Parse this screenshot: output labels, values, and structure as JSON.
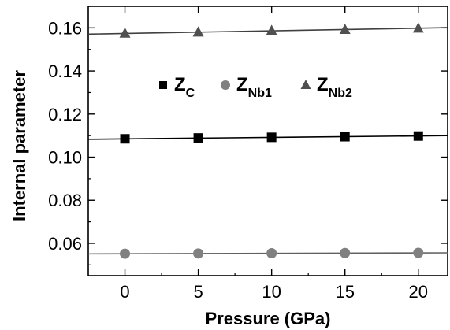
{
  "chart_data": {
    "type": "scatter",
    "xlabel": "Pressure (GPa)",
    "ylabel": "Internal parameter",
    "xlim": [
      -2.5,
      22
    ],
    "ylim": [
      0.045,
      0.17
    ],
    "xticks": [
      0,
      5,
      10,
      15,
      20
    ],
    "xtick_labels": [
      "0",
      "5",
      "10",
      "15",
      "20"
    ],
    "yticks": [
      0.06,
      0.08,
      0.1,
      0.12,
      0.14,
      0.16
    ],
    "ytick_labels": [
      "0.06",
      "0.08",
      "0.10",
      "0.12",
      "0.14",
      "0.16"
    ],
    "grid": false,
    "legend_position": "upper-center",
    "series": [
      {
        "name": "Z_C",
        "label_main": "Z",
        "label_sub": "C",
        "marker": "square",
        "color": "#000000",
        "line_color": "#000000",
        "x": [
          0,
          5,
          10,
          15,
          20
        ],
        "y": [
          0.1085,
          0.1089,
          0.1092,
          0.1095,
          0.1098
        ],
        "fit_line": [
          [
            -2.5,
            0.1083
          ],
          [
            22,
            0.11
          ]
        ]
      },
      {
        "name": "Z_Nb1",
        "label_main": "Z",
        "label_sub": "Nb1",
        "marker": "circle",
        "color": "#808080",
        "line_color": "#606060",
        "x": [
          0,
          5,
          10,
          15,
          20
        ],
        "y": [
          0.0552,
          0.0553,
          0.0554,
          0.0555,
          0.0556
        ],
        "fit_line": [
          [
            -2.5,
            0.0551
          ],
          [
            22,
            0.0556
          ]
        ]
      },
      {
        "name": "Z_Nb2",
        "label_main": "Z",
        "label_sub": "Nb2",
        "marker": "triangle",
        "color": "#505050",
        "line_color": "#404040",
        "x": [
          0,
          5,
          10,
          15,
          20
        ],
        "y": [
          0.1575,
          0.158,
          0.1587,
          0.1592,
          0.1598
        ],
        "fit_line": [
          [
            -2.5,
            0.1571
          ],
          [
            22,
            0.1601
          ]
        ]
      }
    ]
  }
}
